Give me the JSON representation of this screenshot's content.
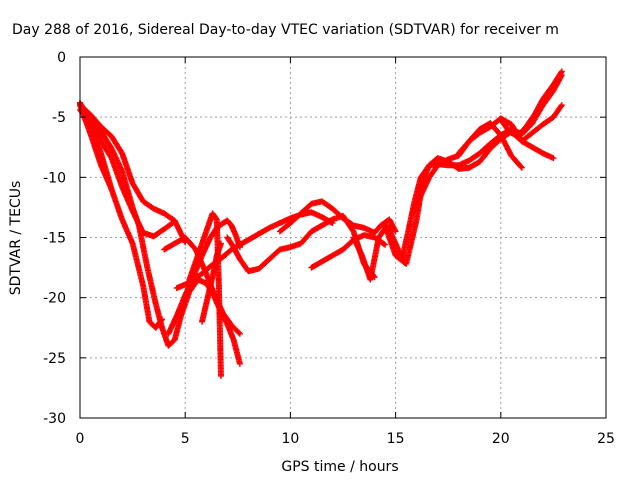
{
  "chart_data": {
    "type": "scatter",
    "title": "Day 288 of 2016, Sidereal Day-to-day VTEC variation (SDTVAR) for receiver m",
    "xlabel": "GPS time / hours",
    "ylabel": "SDTVAR / TECUs",
    "xlim": [
      0,
      25
    ],
    "ylim": [
      -30,
      0
    ],
    "xticks": [
      0,
      5,
      10,
      15,
      20,
      25
    ],
    "yticks": [
      0,
      -5,
      -10,
      -15,
      -20,
      -25,
      -30
    ],
    "xtick_labels": [
      "0",
      "5",
      "10",
      "15",
      "20",
      "25"
    ],
    "ytick_labels": [
      "0",
      "-5",
      "-10",
      "-15",
      "-20",
      "-25",
      "-30"
    ],
    "grid": true,
    "marker": "+",
    "series_color": "#ff0000",
    "series": [
      {
        "x": [
          0,
          0.5,
          1.0,
          1.5,
          2.0,
          2.5,
          3.0,
          3.5,
          4.0,
          4.5,
          5.0
        ],
        "y": [
          -4.0,
          -4.8,
          -5.8,
          -6.6,
          -8.0,
          -10.5,
          -12.0,
          -12.6,
          -13.0,
          -13.6,
          -15.4
        ]
      },
      {
        "x": [
          0,
          0.5,
          1.0,
          1.5,
          2.0,
          2.5,
          3.0,
          3.5,
          4.0,
          4.4
        ],
        "y": [
          -4.4,
          -5.4,
          -7.0,
          -8.4,
          -10.8,
          -12.8,
          -14.6,
          -14.9,
          -14.3,
          -13.8
        ]
      },
      {
        "x": [
          0,
          0.5,
          1.0,
          1.5
        ],
        "y": [
          -4.0,
          -6.4,
          -9.0,
          -11.0
        ]
      },
      {
        "x": [
          0,
          0.5,
          1.0,
          1.5,
          2.0,
          2.5,
          3.0,
          3.3,
          3.6,
          3.9
        ],
        "y": [
          -3.8,
          -5.5,
          -8.0,
          -11.0,
          -13.5,
          -15.5,
          -19.0,
          -22.0,
          -22.5,
          -21.8
        ]
      },
      {
        "x": [
          0,
          0.5,
          1.0,
          1.5,
          2.0,
          2.5,
          2.8,
          3.2,
          3.6,
          3.9,
          4.2,
          4.5,
          4.8,
          5.2,
          5.6,
          6.0,
          6.3,
          6.6,
          7.0,
          7.3,
          7.6
        ],
        "y": [
          -3.9,
          -5.0,
          -6.2,
          -7.6,
          -9.5,
          -12.5,
          -14.0,
          -17.5,
          -20.5,
          -22.5,
          -24.0,
          -23.5,
          -21.5,
          -19.5,
          -18.5,
          -18.8,
          -19.6,
          -20.8,
          -22.2,
          -23.5,
          -25.5
        ]
      },
      {
        "x": [
          4.2,
          4.6,
          5.0,
          5.4,
          5.8,
          6.2,
          6.5,
          6.8,
          7.0,
          7.2,
          7.4,
          7.6
        ],
        "y": [
          -23.0,
          -21.5,
          -19.8,
          -18.2,
          -16.5,
          -15.0,
          -14.2,
          -13.8,
          -13.6,
          -14.0,
          -14.8,
          -15.8
        ]
      },
      {
        "x": [
          4.6,
          5.0,
          5.4,
          5.8,
          6.2,
          6.5,
          6.8,
          7.2,
          7.6,
          8.0,
          8.5,
          9.0,
          9.5,
          10.0,
          10.5,
          11.0,
          11.5,
          12.0
        ],
        "y": [
          -19.2,
          -18.9,
          -18.5,
          -18.0,
          -17.4,
          -17.0,
          -16.6,
          -16.0,
          -15.6,
          -15.2,
          -14.7,
          -14.2,
          -13.8,
          -13.4,
          -13.1,
          -12.9,
          -13.3,
          -13.8
        ]
      },
      {
        "x": [
          4.0,
          4.5,
          5.0,
          5.5,
          6.0,
          6.4,
          6.8,
          7.2,
          7.6
        ],
        "y": [
          -16.0,
          -15.5,
          -15.0,
          -16.0,
          -18.0,
          -19.8,
          -21.3,
          -22.3,
          -23.0
        ]
      },
      {
        "x": [
          5.2,
          5.5,
          5.8,
          6.1,
          6.3,
          6.5,
          6.6,
          6.7
        ],
        "y": [
          -18.5,
          -17.0,
          -15.5,
          -14.0,
          -13.0,
          -13.5,
          -19.0,
          -26.5
        ]
      },
      {
        "x": [
          5.8,
          6.0,
          6.2,
          6.4,
          6.5,
          6.7
        ],
        "y": [
          -22.0,
          -20.5,
          -19.0,
          -17.5,
          -16.5,
          -15.5
        ]
      },
      {
        "x": [
          7.0,
          7.3,
          7.6,
          8.0,
          8.5,
          9.0,
          9.5,
          10.0,
          10.5,
          11.0,
          11.5,
          12.0,
          12.5,
          13.0,
          13.5,
          14.0
        ],
        "y": [
          -15.0,
          -15.8,
          -16.8,
          -17.8,
          -17.6,
          -16.8,
          -16.0,
          -15.8,
          -15.5,
          -14.5,
          -14.0,
          -13.5,
          -13.2,
          -14.5,
          -17.2,
          -18.3
        ]
      },
      {
        "x": [
          11.0,
          11.5,
          12.0,
          12.5,
          13.0,
          13.5,
          14.0,
          14.5
        ],
        "y": [
          -17.5,
          -17.0,
          -16.5,
          -16.0,
          -15.2,
          -14.8,
          -15.0,
          -15.6
        ]
      },
      {
        "x": [
          9.5,
          10.0,
          10.5,
          11.0,
          11.5,
          12.0,
          12.5,
          13.0,
          13.5,
          14.0,
          14.3,
          14.7,
          15.0
        ],
        "y": [
          -14.5,
          -13.8,
          -13.0,
          -12.2,
          -12.0,
          -12.6,
          -13.4,
          -14.0,
          -14.2,
          -14.6,
          -14.0,
          -13.5,
          -14.5
        ]
      },
      {
        "x": [
          13.0,
          13.4,
          13.8,
          14.2,
          14.6,
          15.0,
          15.3,
          15.6,
          15.9,
          16.2,
          16.6,
          17.0,
          17.5,
          18.0,
          18.5,
          19.0,
          19.5,
          20.0,
          20.5,
          21.0,
          21.5,
          22.0,
          22.5,
          22.9
        ],
        "y": [
          -15.0,
          -16.5,
          -18.5,
          -15.0,
          -14.0,
          -15.5,
          -16.8,
          -14.5,
          -12.0,
          -10.0,
          -9.0,
          -8.9,
          -9.0,
          -9.0,
          -8.6,
          -8.0,
          -7.2,
          -6.5,
          -6.0,
          -6.4,
          -5.5,
          -4.0,
          -2.8,
          -1.5
        ]
      },
      {
        "x": [
          14.5,
          15.0,
          15.5,
          16.0,
          16.3,
          16.6,
          17.0,
          17.5,
          18.0,
          18.5,
          19.0,
          19.5,
          20.0,
          20.5,
          21.0,
          21.5,
          22.0,
          22.5,
          22.9
        ],
        "y": [
          -14.0,
          -16.5,
          -17.2,
          -13.5,
          -10.2,
          -9.0,
          -8.4,
          -8.7,
          -9.3,
          -9.2,
          -8.7,
          -7.6,
          -6.8,
          -6.2,
          -7.0,
          -6.3,
          -5.6,
          -5.0,
          -4.0
        ]
      },
      {
        "x": [
          15.8,
          16.2,
          16.6,
          17.0,
          17.5,
          18.0,
          18.5,
          19.0,
          19.5,
          20.0,
          20.5,
          21.0
        ],
        "y": [
          -13.0,
          -11.5,
          -10.0,
          -9.0,
          -8.5,
          -8.2,
          -7.0,
          -6.0,
          -5.5,
          -6.5,
          -8.2,
          -9.2
        ]
      },
      {
        "x": [
          18.0,
          18.5,
          19.0,
          19.5,
          20.0,
          20.5,
          21.0,
          21.5,
          22.0,
          22.5
        ],
        "y": [
          -8.0,
          -7.0,
          -6.3,
          -5.8,
          -5.1,
          -5.6,
          -7.0,
          -7.5,
          -8.0,
          -8.4
        ]
      },
      {
        "x": [
          20.0,
          20.4,
          20.8,
          21.2,
          21.6,
          22.0,
          22.5,
          22.9
        ],
        "y": [
          -5.2,
          -6.2,
          -6.6,
          -5.8,
          -4.8,
          -3.5,
          -2.3,
          -1.2
        ]
      }
    ]
  }
}
